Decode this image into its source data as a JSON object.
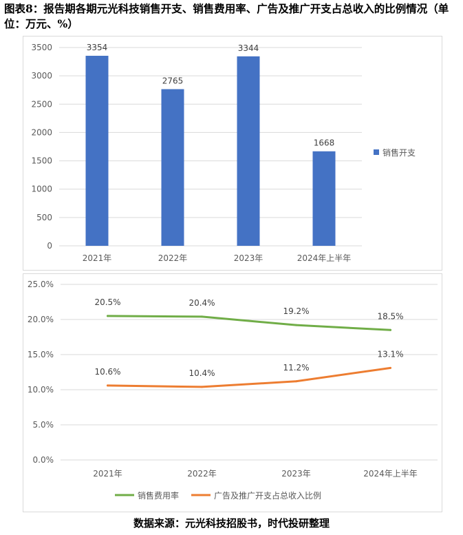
{
  "header": {
    "title": "图表8：报告期各期元光科技销售开支、销售费用率、广告及推广开支占总收入的比例情况（单位：万元、%）"
  },
  "footer": {
    "source": "数据来源：元光科技招股书，时代投研整理"
  },
  "colors": {
    "bar": "#4472c4",
    "sales_rate_line": "#70ad47",
    "ad_ratio_line": "#ed7d31",
    "grid": "#d9d9d9",
    "axis_text": "#595959"
  },
  "chart_data": [
    {
      "type": "bar",
      "categories": [
        "2021年",
        "2022年",
        "2023年",
        "2024年上半年"
      ],
      "series": [
        {
          "name": "销售开支",
          "values": [
            3354,
            2765,
            3344,
            1668
          ]
        }
      ],
      "data_labels": [
        "3354",
        "2765",
        "3344",
        "1668"
      ],
      "y_ticks": [
        "0",
        "500",
        "1000",
        "1500",
        "2000",
        "2500",
        "3000",
        "3500"
      ],
      "ylim": [
        0,
        3500
      ],
      "legend": "right",
      "grid": true,
      "title": "",
      "xlabel": "",
      "ylabel": ""
    },
    {
      "type": "line",
      "categories": [
        "2021年",
        "2022年",
        "2023年",
        "2024年上半年"
      ],
      "series": [
        {
          "name": "销售费用率",
          "values": [
            20.5,
            20.4,
            19.2,
            18.5
          ],
          "labels": [
            "20.5%",
            "20.4%",
            "19.2%",
            "18.5%"
          ]
        },
        {
          "name": "广告及推广开支占总收入比例",
          "values": [
            10.6,
            10.4,
            11.2,
            13.1
          ],
          "labels": [
            "10.6%",
            "10.4%",
            "11.2%",
            "13.1%"
          ]
        }
      ],
      "y_ticks": [
        "0.0%",
        "5.0%",
        "10.0%",
        "15.0%",
        "20.0%",
        "25.0%"
      ],
      "ylim": [
        0,
        25
      ],
      "legend": "bottom",
      "grid": true,
      "title": "",
      "xlabel": "",
      "ylabel": ""
    }
  ]
}
